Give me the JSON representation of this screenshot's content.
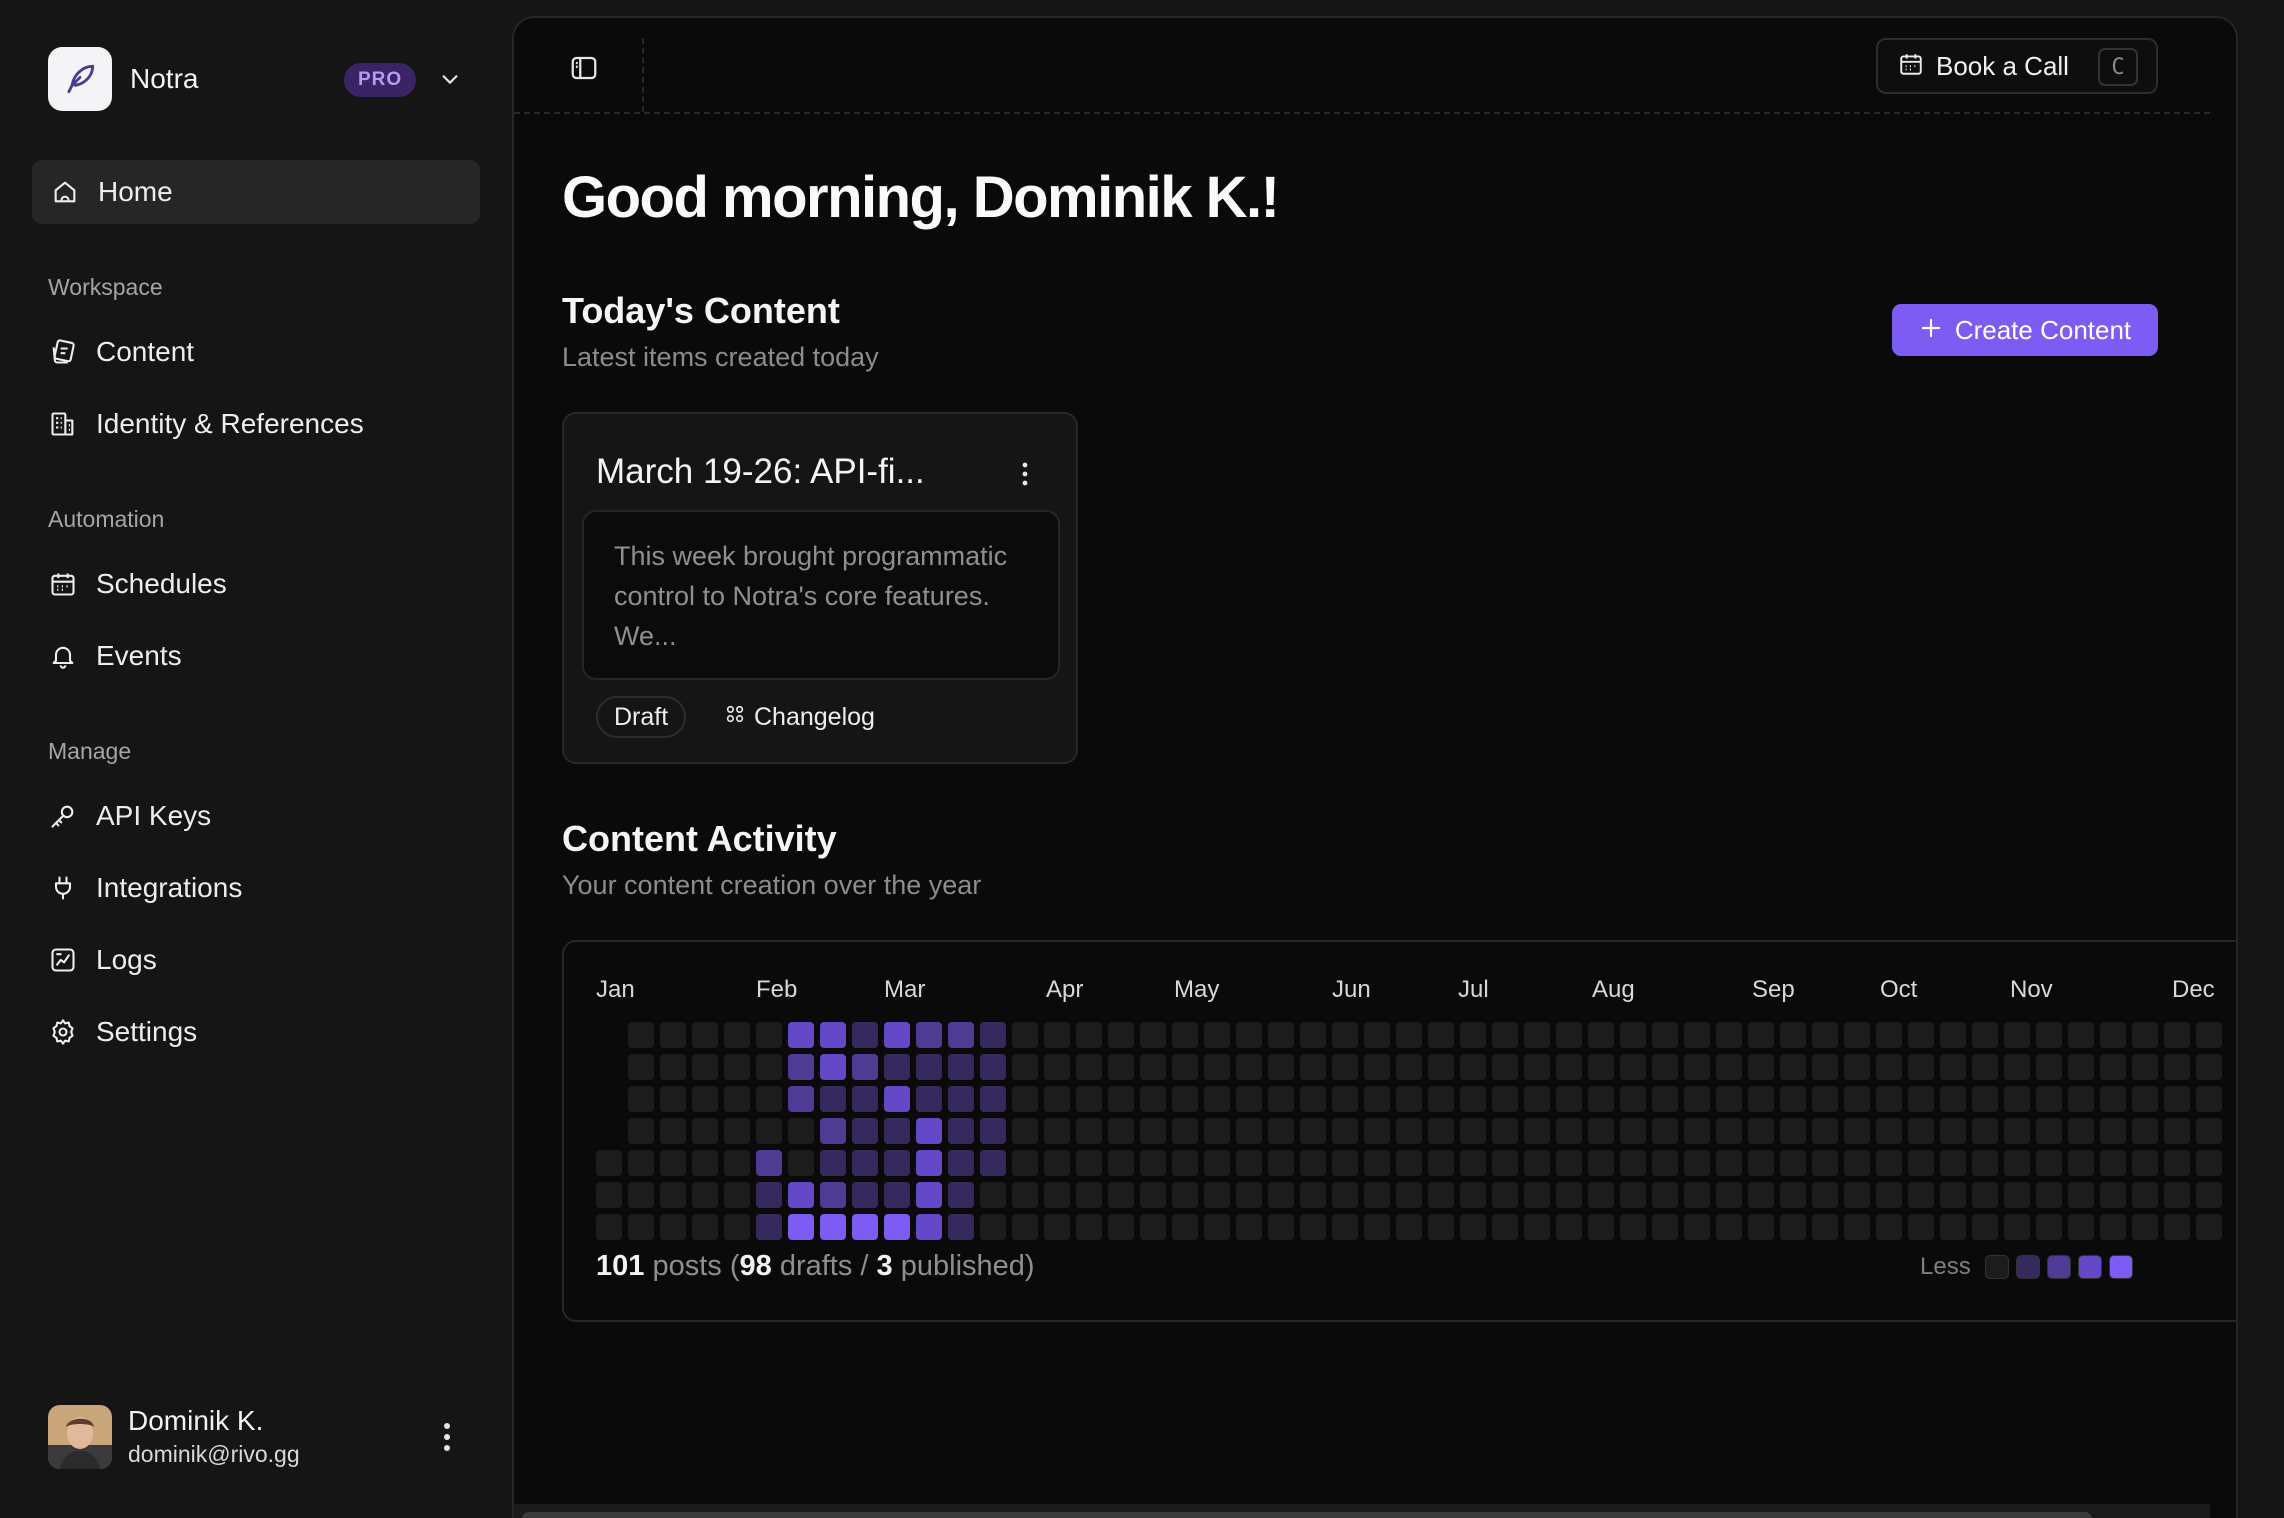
{
  "brand": {
    "name": "Notra",
    "plan_badge": "PRO"
  },
  "nav": {
    "home": "Home",
    "sections": [
      {
        "label": "Workspace",
        "items": [
          "Content",
          "Identity & References"
        ]
      },
      {
        "label": "Automation",
        "items": [
          "Schedules",
          "Events"
        ]
      },
      {
        "label": "Manage",
        "items": [
          "API Keys",
          "Integrations",
          "Logs",
          "Settings"
        ]
      }
    ]
  },
  "user": {
    "name": "Dominik K.",
    "email": "dominik@rivo.gg"
  },
  "topbar": {
    "book_call_label": "Book a Call",
    "book_call_shortcut": "C"
  },
  "greeting": "Good morning, Dominik K.!",
  "today": {
    "title": "Today's Content",
    "subtitle": "Latest items created today",
    "create_label": "Create Content",
    "card": {
      "title": "March 19-26: API-fi...",
      "excerpt": "This week brought programmatic control to Notra's core features. We...",
      "status": "Draft",
      "type": "Changelog"
    }
  },
  "activity": {
    "title": "Content Activity",
    "subtitle": "Your content creation over the year",
    "months": [
      "Jan",
      "Feb",
      "Mar",
      "Apr",
      "May",
      "Jun",
      "Jul",
      "Aug",
      "Sep",
      "Oct",
      "Nov",
      "Dec"
    ],
    "total": "101",
    "total_label": "posts",
    "drafts": "98",
    "drafts_label": "drafts",
    "published": "3",
    "published_label": "published)",
    "legend_less": "Less",
    "levels": [
      "#1c1c1c",
      "#35295e",
      "#4f3a95",
      "#6548c7",
      "#7c5cf2"
    ],
    "weeks_visible": 51,
    "active_weeks": [
      {
        "week": 5,
        "levels": [
          0,
          0,
          0,
          0,
          2,
          1,
          1
        ]
      },
      {
        "week": 6,
        "levels": [
          3,
          2,
          2,
          0,
          0,
          3,
          4
        ]
      },
      {
        "week": 7,
        "levels": [
          3,
          3,
          1,
          2,
          1,
          2,
          4
        ]
      },
      {
        "week": 8,
        "levels": [
          1,
          2,
          1,
          1,
          1,
          1,
          4
        ]
      },
      {
        "week": 9,
        "levels": [
          3,
          1,
          3,
          1,
          1,
          1,
          4
        ]
      },
      {
        "week": 10,
        "levels": [
          2,
          1,
          1,
          3,
          3,
          3,
          3
        ]
      },
      {
        "week": 11,
        "levels": [
          2,
          1,
          1,
          1,
          1,
          1,
          1
        ]
      },
      {
        "week": 12,
        "levels": [
          1,
          1,
          1,
          1,
          1,
          0,
          0
        ]
      }
    ]
  }
}
